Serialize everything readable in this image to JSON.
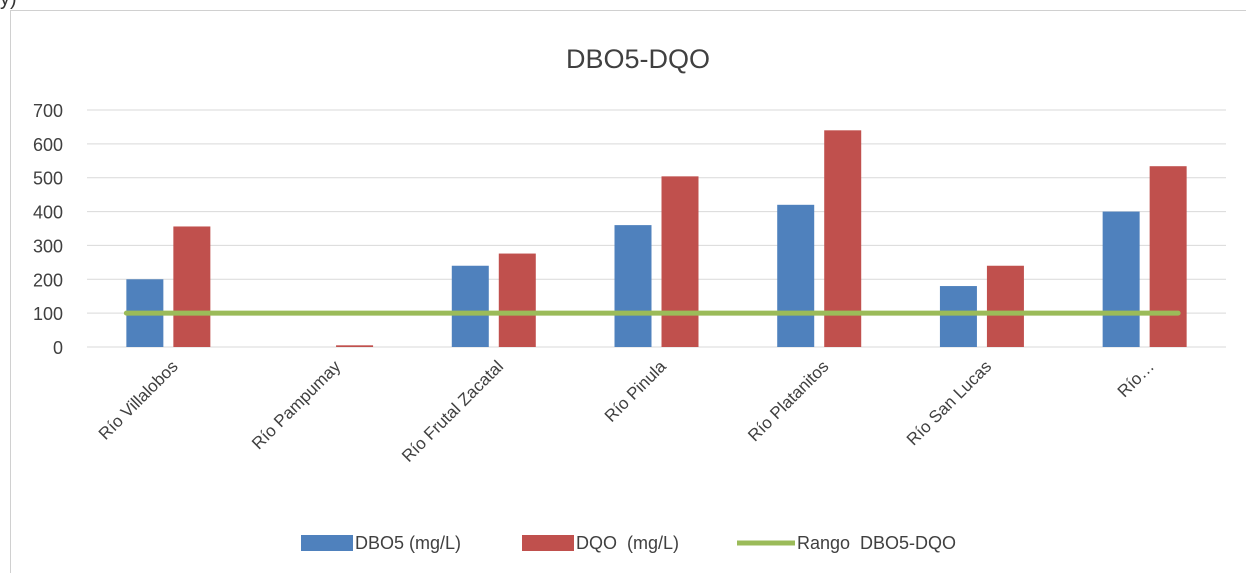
{
  "page_fragment": "y)",
  "chart_data": {
    "type": "bar",
    "title": "DBO5-DQO",
    "categories": [
      "Río Villalobos",
      "Río Pampumay",
      "Río Frutal Zacatal",
      "Río Pinula",
      "Río Platanitos",
      "Río San Lucas",
      "Río…"
    ],
    "series": [
      {
        "name": "DBO5 (mg/L)",
        "type": "bar",
        "color": "#4f81bd",
        "values": [
          200,
          0,
          240,
          360,
          420,
          180,
          400
        ]
      },
      {
        "name": "DQO  (mg/L)",
        "type": "bar",
        "color": "#c0504d",
        "values": [
          356,
          5,
          276,
          504,
          640,
          240,
          534
        ]
      },
      {
        "name": "Rango  DBO5-DQO",
        "type": "line",
        "color": "#9bbb59",
        "values": [
          100,
          100,
          100,
          100,
          100,
          100,
          100
        ]
      }
    ],
    "ylim": [
      0,
      700
    ],
    "yticks": [
      0,
      100,
      200,
      300,
      400,
      500,
      600,
      700
    ],
    "grid": true,
    "legend": "bottom",
    "xlabel": "",
    "ylabel": ""
  }
}
